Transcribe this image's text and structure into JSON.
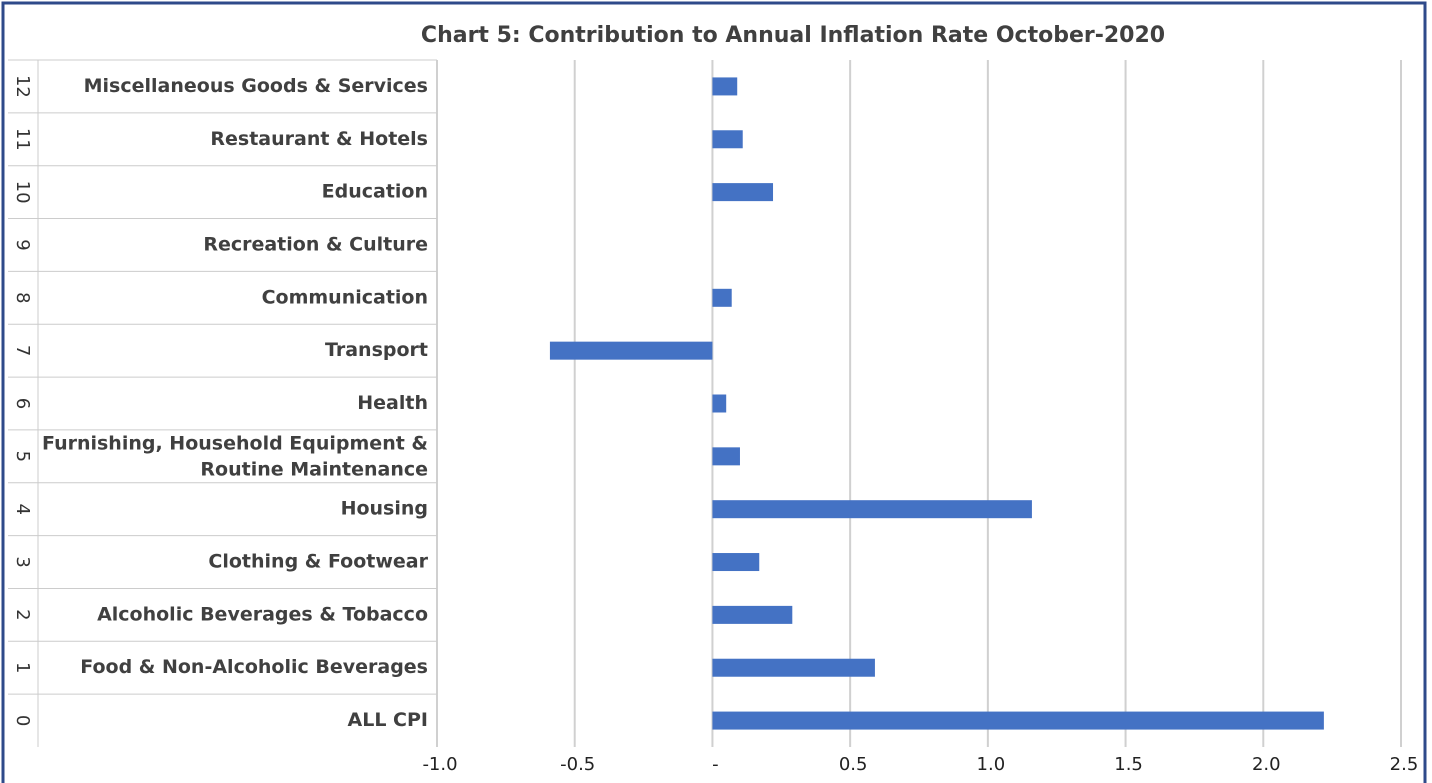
{
  "chart_data": {
    "type": "barh",
    "title": "Chart 5: Contribution to Annual  Inflation Rate October-2020",
    "codes": [
      "0",
      "1",
      "2",
      "3",
      "4",
      "5",
      "6",
      "7",
      "8",
      "9",
      "10",
      "11",
      "12"
    ],
    "categories": [
      "ALL CPI",
      "Food & Non-Alcoholic Beverages",
      "Alcoholic Beverages & Tobacco",
      "Clothing & Footwear",
      "Housing",
      "Furnishing, Household Equipment &\nRoutine Maintenance",
      "Health",
      "Transport",
      "Communication",
      "Recreation & Culture",
      "Education",
      "Restaurant & Hotels",
      "Miscellaneous Goods & Services"
    ],
    "values": [
      2.22,
      0.59,
      0.29,
      0.17,
      1.16,
      0.1,
      0.05,
      -0.59,
      0.07,
      0,
      0.22,
      0.11,
      0.09
    ],
    "color": "#4472c4",
    "xlim": [
      -1,
      2.5
    ],
    "xticks": [
      {
        "value": -1,
        "label": "-1.0"
      },
      -0.5,
      {
        "value": 0,
        "label": "-"
      },
      0.5,
      {
        "value": 1,
        "label": "1.0"
      },
      1.5,
      {
        "value": 2,
        "label": "2.0"
      },
      2.5
    ],
    "grid": true
  }
}
